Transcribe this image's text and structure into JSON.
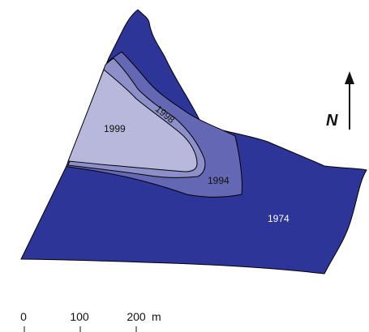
{
  "map": {
    "areas": [
      {
        "year": "1974",
        "color": "#2e3598"
      },
      {
        "year": "1994",
        "color": "#6467b3"
      },
      {
        "year": "1998",
        "color": "#8c8fc8"
      },
      {
        "year": "1999",
        "color": "#b8b8dd"
      }
    ],
    "labels": {
      "y1974": "1974",
      "y1994": "1994",
      "y1998": "1998",
      "y1999": "1999"
    },
    "label_colors": {
      "dark_area_text": "#ffffff",
      "light_area_text": "#111111"
    }
  },
  "north_arrow": {
    "label": "N"
  },
  "scale_bar": {
    "ticks": [
      "0",
      "100",
      "200"
    ],
    "unit": "m"
  }
}
